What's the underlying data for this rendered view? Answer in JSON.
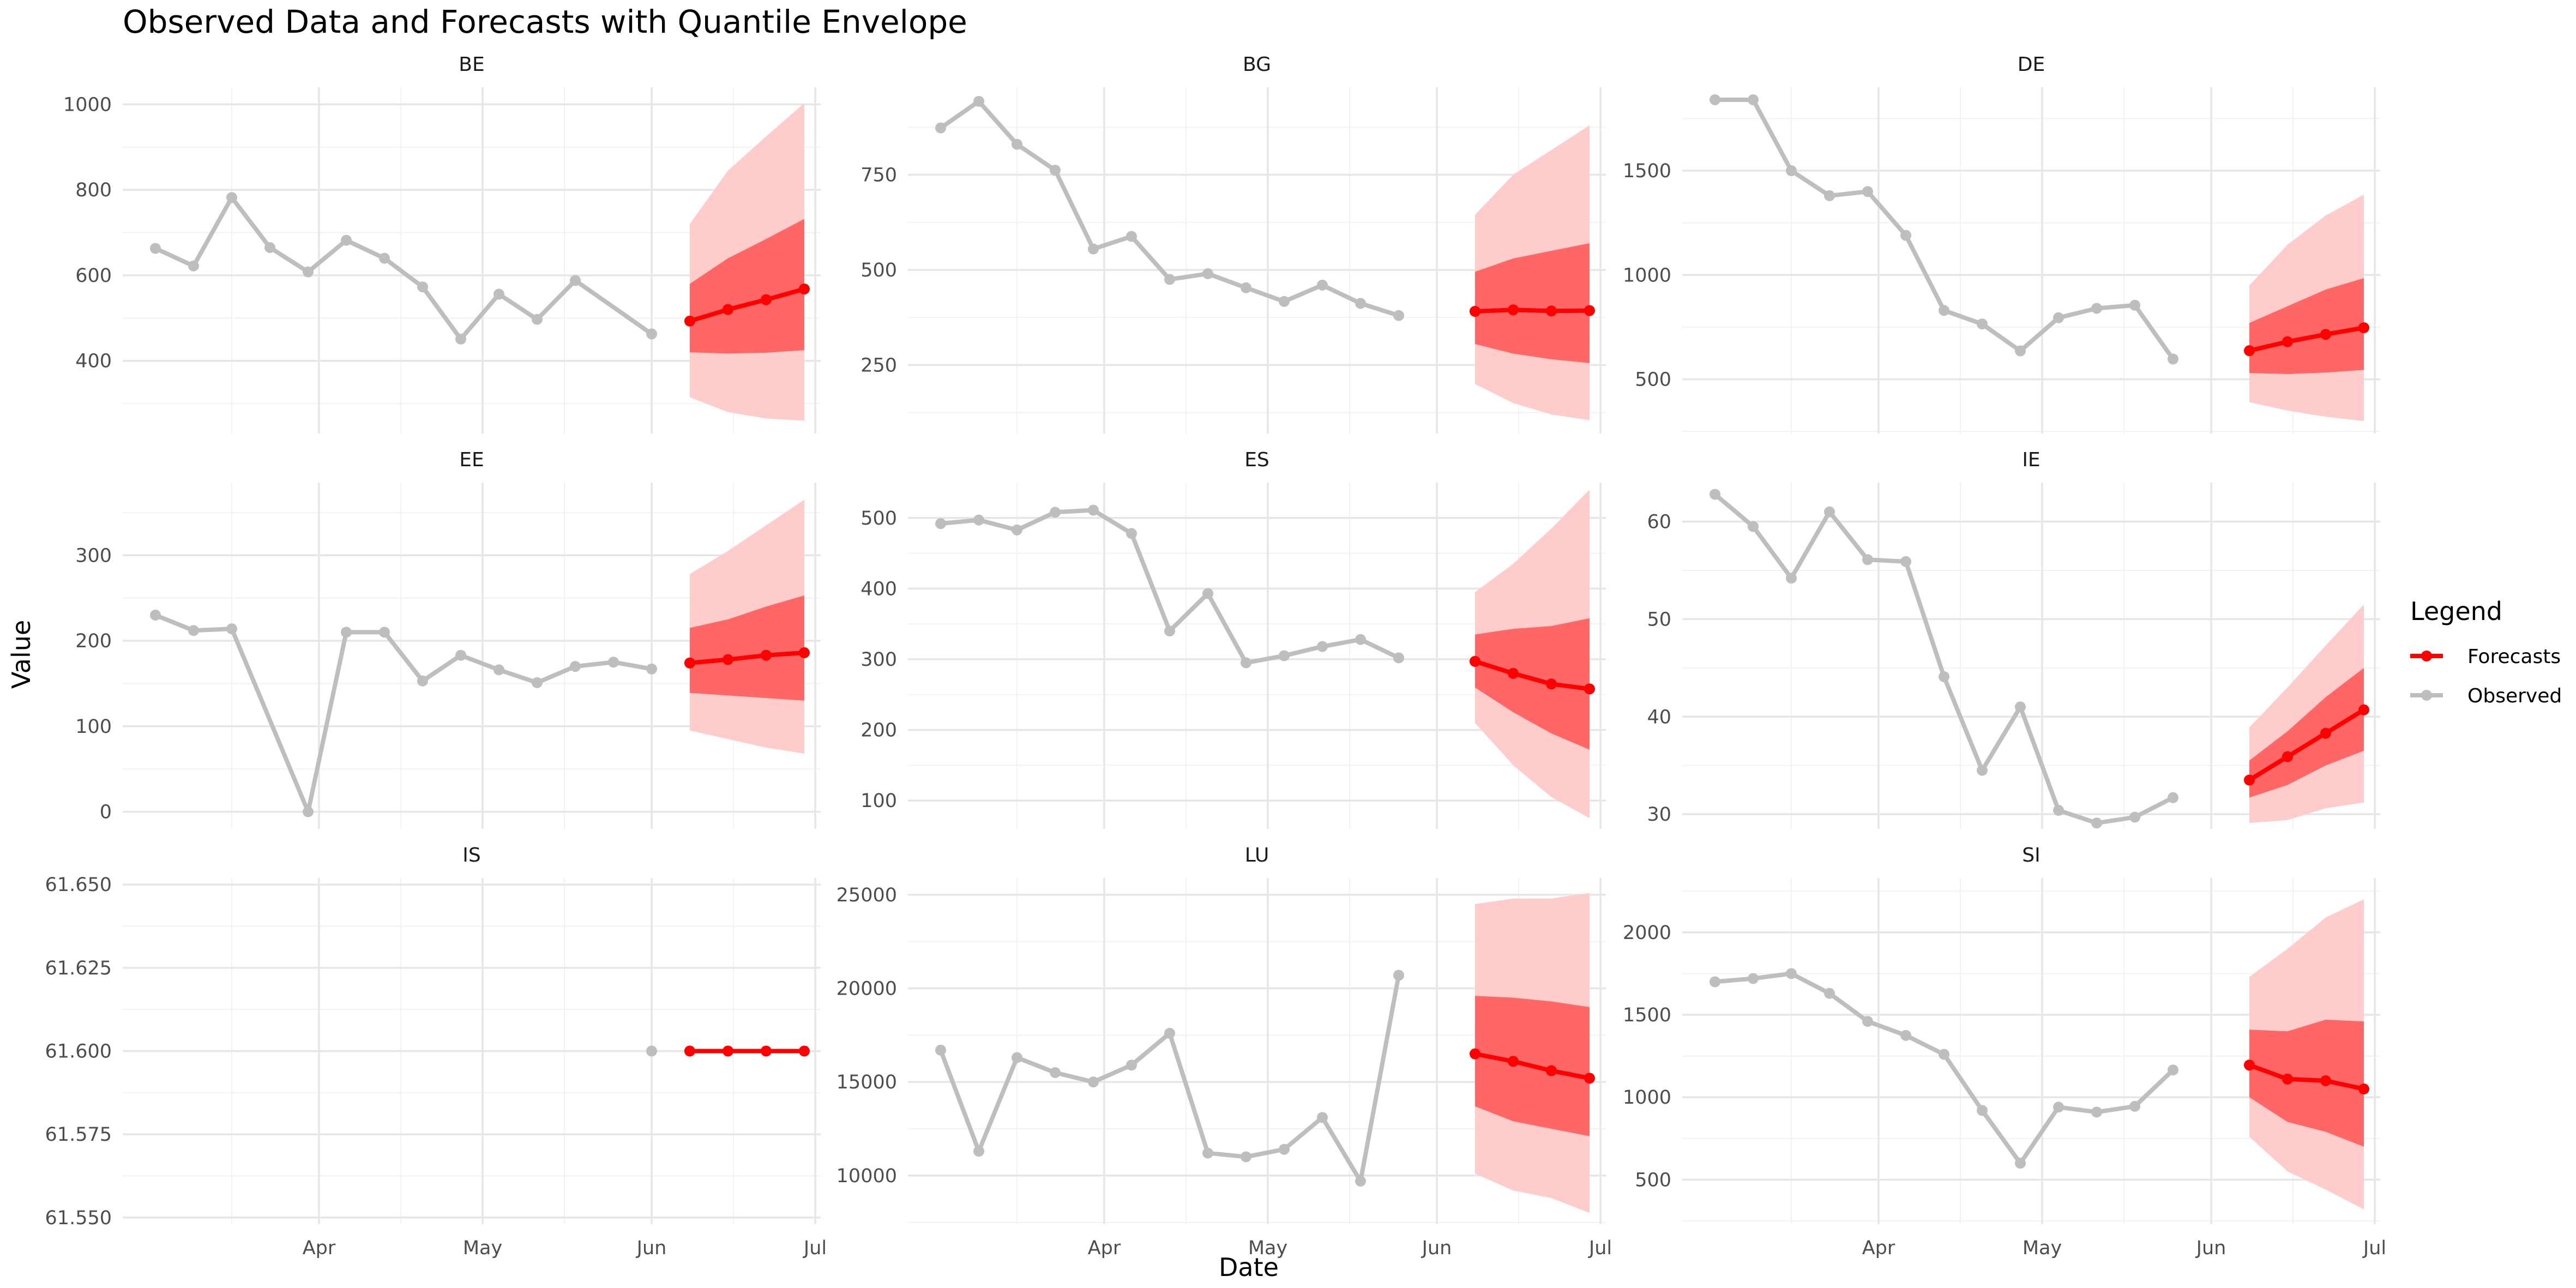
{
  "chart_data": {
    "type": "line",
    "title": "Observed Data and Forecasts with Quantile Envelope",
    "xlabel": "Date",
    "ylabel": "Value",
    "x_ticks": [
      "Apr",
      "May",
      "Jun",
      "Jul"
    ],
    "legend": {
      "title": "Legend",
      "position": "right",
      "entries": [
        {
          "label": "Forecasts",
          "color": "#ff0000"
        },
        {
          "label": "Observed",
          "color": "#bebebe"
        }
      ]
    },
    "colors": {
      "observed": "#bebebe",
      "forecast": "#ff0000",
      "inner_band": "#ff6666",
      "outer_band": "#ffcccc"
    },
    "grid": true,
    "observed_dates": [
      "2024-03-02",
      "2024-03-09",
      "2024-03-16",
      "2024-03-23",
      "2024-03-30",
      "2024-04-06",
      "2024-04-13",
      "2024-04-20",
      "2024-04-27",
      "2024-05-04",
      "2024-05-11",
      "2024-05-18",
      "2024-05-25",
      "2024-06-01"
    ],
    "forecast_dates": [
      "2024-06-08",
      "2024-06-15",
      "2024-06-22",
      "2024-06-29"
    ],
    "xlim": [
      "2024-02-25",
      "2024-07-02"
    ],
    "panels": [
      {
        "name": "BE",
        "ylim": [
          230,
          1040
        ],
        "y_ticks": [
          400,
          600,
          800,
          1000
        ],
        "observed": [
          663,
          622,
          782,
          665,
          608,
          682,
          640,
          573,
          451,
          556,
          497,
          588,
          463
        ],
        "observed_dates_index": [
          0,
          1,
          2,
          3,
          4,
          5,
          6,
          7,
          8,
          9,
          10,
          11,
          13
        ],
        "forecast": [
          493,
          520,
          543,
          568
        ],
        "q_inner_low": [
          420,
          417,
          419,
          425
        ],
        "q_inner_high": [
          580,
          640,
          685,
          732
        ],
        "q_outer_low": [
          315,
          280,
          265,
          260
        ],
        "q_outer_high": [
          720,
          845,
          925,
          1003
        ]
      },
      {
        "name": "BG",
        "ylim": [
          70,
          980
        ],
        "y_ticks": [
          250,
          500,
          750
        ],
        "observed": [
          873,
          943,
          830,
          762,
          555,
          588,
          475,
          490,
          453,
          417,
          460,
          412,
          380
        ],
        "observed_dates_index": [
          0,
          1,
          2,
          3,
          4,
          5,
          6,
          7,
          8,
          9,
          10,
          11,
          12
        ],
        "forecast": [
          391,
          395,
          392,
          393
        ],
        "q_inner_low": [
          305,
          280,
          265,
          255
        ],
        "q_inner_high": [
          495,
          530,
          550,
          570
        ],
        "q_outer_low": [
          200,
          150,
          120,
          105
        ],
        "q_outer_high": [
          645,
          750,
          815,
          880
        ]
      },
      {
        "name": "DE",
        "ylim": [
          240,
          1900
        ],
        "y_ticks": [
          500,
          1000,
          1500
        ],
        "observed": [
          1840,
          1840,
          1500,
          1380,
          1400,
          1190,
          830,
          765,
          636,
          795,
          840,
          855,
          597
        ],
        "observed_dates_index": [
          0,
          1,
          2,
          3,
          4,
          5,
          6,
          7,
          8,
          9,
          10,
          11,
          12
        ],
        "forecast": [
          637,
          680,
          715,
          747
        ],
        "q_inner_low": [
          530,
          525,
          532,
          545
        ],
        "q_inner_high": [
          770,
          850,
          930,
          985
        ],
        "q_outer_low": [
          390,
          350,
          320,
          300
        ],
        "q_outer_high": [
          950,
          1145,
          1285,
          1385
        ]
      },
      {
        "name": "EE",
        "ylim": [
          -20,
          385
        ],
        "y_ticks": [
          0,
          100,
          200,
          300
        ],
        "observed": [
          230,
          212,
          214,
          0,
          210,
          210,
          153,
          183,
          166,
          151,
          170,
          175,
          167
        ],
        "observed_dates_index": [
          0,
          1,
          2,
          4,
          5,
          6,
          7,
          8,
          9,
          10,
          11,
          12,
          13
        ],
        "forecast": [
          174,
          178,
          183,
          186
        ],
        "q_inner_low": [
          139,
          136,
          133,
          130
        ],
        "q_inner_high": [
          215,
          225,
          240,
          253
        ],
        "q_outer_low": [
          95,
          85,
          75,
          68
        ],
        "q_outer_high": [
          278,
          305,
          335,
          365
        ]
      },
      {
        "name": "ES",
        "ylim": [
          60,
          550
        ],
        "y_ticks": [
          100,
          200,
          300,
          400,
          500
        ],
        "observed": [
          492,
          497,
          483,
          508,
          511,
          478,
          340,
          393,
          295,
          305,
          318,
          328,
          302
        ],
        "observed_dates_index": [
          0,
          1,
          2,
          3,
          4,
          5,
          6,
          7,
          8,
          9,
          10,
          11,
          12
        ],
        "forecast": [
          297,
          280,
          265,
          258
        ],
        "q_inner_low": [
          260,
          225,
          195,
          172
        ],
        "q_inner_high": [
          335,
          343,
          347,
          358
        ],
        "q_outer_low": [
          210,
          150,
          105,
          75
        ],
        "q_outer_high": [
          395,
          435,
          485,
          540
        ]
      },
      {
        "name": "IE",
        "ylim": [
          28.5,
          64
        ],
        "y_ticks": [
          30,
          40,
          50,
          60
        ],
        "observed": [
          62.8,
          59.5,
          54.2,
          61.0,
          56.1,
          55.9,
          44.1,
          34.5,
          41.0,
          30.4,
          29.1,
          29.7,
          31.7
        ],
        "observed_dates_index": [
          0,
          1,
          2,
          3,
          4,
          5,
          6,
          7,
          8,
          9,
          10,
          11,
          12
        ],
        "forecast": [
          33.5,
          35.9,
          38.3,
          40.7
        ],
        "q_inner_low": [
          31.7,
          33.0,
          35.0,
          36.5
        ],
        "q_inner_high": [
          35.5,
          38.5,
          42.0,
          45.0
        ],
        "q_outer_low": [
          29.1,
          29.4,
          30.6,
          31.2
        ],
        "q_outer_high": [
          38.9,
          43.0,
          47.3,
          51.5
        ]
      },
      {
        "name": "IS",
        "ylim": [
          61.548,
          61.652
        ],
        "y_ticks": [
          61.55,
          61.575,
          61.6,
          61.625,
          61.65
        ],
        "y_tick_labels": [
          "61.550",
          "61.575",
          "61.600",
          "61.625",
          "61.650"
        ],
        "observed": [
          61.6
        ],
        "observed_dates_index": [
          13
        ],
        "forecast": [
          61.6,
          61.6,
          61.6,
          61.6
        ],
        "q_inner_low": [
          61.6,
          61.6,
          61.6,
          61.6
        ],
        "q_inner_high": [
          61.6,
          61.6,
          61.6,
          61.6
        ],
        "q_outer_low": [
          61.6,
          61.6,
          61.6,
          61.6
        ],
        "q_outer_high": [
          61.6,
          61.6,
          61.6,
          61.6
        ]
      },
      {
        "name": "LU",
        "ylim": [
          7400,
          25900
        ],
        "y_ticks": [
          10000,
          15000,
          20000,
          25000
        ],
        "observed": [
          16700,
          11300,
          16300,
          15500,
          15000,
          15900,
          17600,
          11200,
          11000,
          11400,
          13100,
          9700,
          20700
        ],
        "observed_dates_index": [
          0,
          1,
          2,
          3,
          4,
          5,
          6,
          7,
          8,
          9,
          10,
          11,
          12
        ],
        "forecast": [
          16500,
          16100,
          15600,
          15200
        ],
        "q_inner_low": [
          13700,
          12900,
          12500,
          12100
        ],
        "q_inner_high": [
          19600,
          19500,
          19300,
          19000
        ],
        "q_outer_low": [
          10100,
          9200,
          8800,
          8000
        ],
        "q_outer_high": [
          24500,
          24800,
          24800,
          25100
        ]
      },
      {
        "name": "SI",
        "ylim": [
          230,
          2330
        ],
        "y_ticks": [
          500,
          1000,
          1500,
          2000
        ],
        "observed": [
          1700,
          1720,
          1750,
          1630,
          1460,
          1375,
          1260,
          920,
          600,
          940,
          910,
          945,
          1165
        ],
        "observed_dates_index": [
          0,
          1,
          2,
          3,
          4,
          5,
          6,
          7,
          8,
          9,
          10,
          11,
          12
        ],
        "forecast": [
          1195,
          1110,
          1100,
          1050
        ],
        "q_inner_low": [
          1000,
          850,
          790,
          700
        ],
        "q_inner_high": [
          1410,
          1400,
          1470,
          1460
        ],
        "q_outer_low": [
          760,
          550,
          440,
          320
        ],
        "q_outer_high": [
          1730,
          1900,
          2090,
          2200
        ]
      }
    ]
  }
}
